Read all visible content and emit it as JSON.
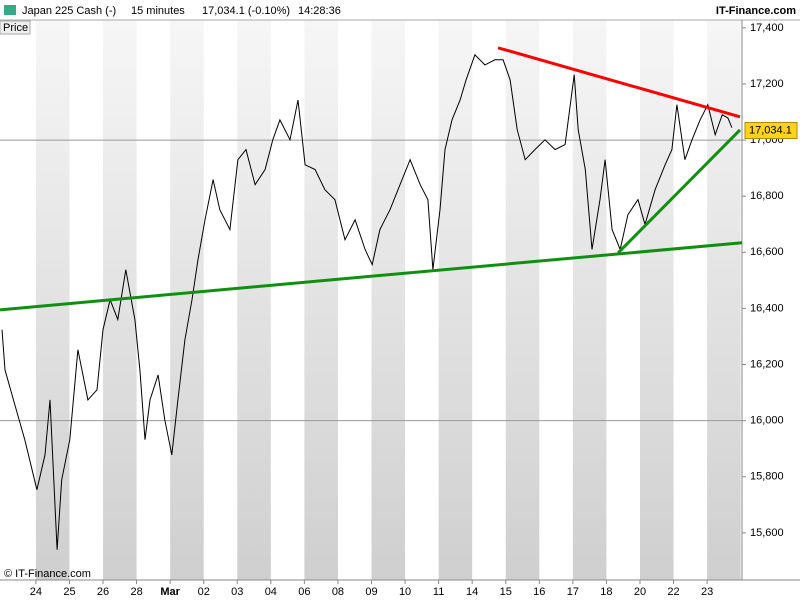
{
  "header": {
    "instrument": "Japan 225 Cash (-)",
    "interval": "15 minutes",
    "quote": "17,034.1 (-0.10%)",
    "time": "14:28:36",
    "brand": "IT-Finance.com",
    "panel_label": "Price",
    "copyright": "© IT-Finance.com"
  },
  "chart_data": {
    "type": "line",
    "xlim": [
      -1.07,
      21.04
    ],
    "ylim": [
      15432,
      17428
    ],
    "xticks": [
      {
        "value": 0,
        "label": "24"
      },
      {
        "value": 1,
        "label": "25"
      },
      {
        "value": 2,
        "label": "26"
      },
      {
        "value": 3,
        "label": "28"
      },
      {
        "value": 4,
        "label": "Mar"
      },
      {
        "value": 5,
        "label": "02"
      },
      {
        "value": 6,
        "label": "03"
      },
      {
        "value": 7,
        "label": "04"
      },
      {
        "value": 8,
        "label": "06"
      },
      {
        "value": 9,
        "label": "08"
      },
      {
        "value": 10,
        "label": "09"
      },
      {
        "value": 11,
        "label": "10"
      },
      {
        "value": 12,
        "label": "11"
      },
      {
        "value": 13,
        "label": "14"
      },
      {
        "value": 14,
        "label": "15"
      },
      {
        "value": 15,
        "label": "16"
      },
      {
        "value": 16,
        "label": "17"
      },
      {
        "value": 17,
        "label": "18"
      },
      {
        "value": 18,
        "label": "20"
      },
      {
        "value": 19,
        "label": "22"
      },
      {
        "value": 20,
        "label": "23"
      }
    ],
    "yticks": [
      {
        "value": 15600,
        "label": "15,600"
      },
      {
        "value": 15800,
        "label": "15,800"
      },
      {
        "value": 16000,
        "label": "16,000"
      },
      {
        "value": 16200,
        "label": "16,200"
      },
      {
        "value": 16400,
        "label": "16,400"
      },
      {
        "value": 16600,
        "label": "16,600"
      },
      {
        "value": 16800,
        "label": "16,800"
      },
      {
        "value": 17000,
        "label": "17,000"
      },
      {
        "value": 17200,
        "label": "17,200"
      },
      {
        "value": 17400,
        "label": "17,400"
      }
    ],
    "ygrid": [
      16000,
      17000
    ],
    "series": [
      {
        "name": "Price",
        "color": "#000000",
        "x": [
          -1.01,
          -0.92,
          -0.63,
          -0.33,
          0.03,
          0.27,
          0.42,
          0.63,
          0.77,
          1.01,
          1.25,
          1.55,
          1.82,
          2.0,
          2.21,
          2.44,
          2.68,
          2.95,
          3.1,
          3.25,
          3.4,
          3.64,
          3.84,
          4.05,
          4.23,
          4.44,
          4.65,
          4.83,
          5.04,
          5.28,
          5.48,
          5.78,
          6.02,
          6.26,
          6.53,
          6.83,
          7.06,
          7.27,
          7.57,
          7.81,
          8.02,
          8.32,
          8.61,
          8.91,
          9.21,
          9.51,
          9.81,
          10.02,
          10.25,
          10.55,
          10.79,
          11.15,
          11.45,
          11.68,
          11.83,
          12.04,
          12.19,
          12.4,
          12.64,
          12.82,
          13.08,
          13.38,
          13.68,
          13.92,
          14.13,
          14.34,
          14.58,
          14.87,
          15.17,
          15.47,
          15.77,
          16.04,
          16.16,
          16.37,
          16.57,
          16.81,
          16.96,
          17.17,
          17.41,
          17.64,
          17.94,
          18.15,
          18.45,
          18.75,
          18.95,
          19.1,
          19.34,
          19.55,
          19.79,
          20.02,
          20.24,
          20.45,
          20.62,
          20.74
        ],
        "values": [
          16324,
          16181,
          16057,
          15932,
          15754,
          15878,
          16074,
          15540,
          15789,
          15932,
          16253,
          16074,
          16110,
          16324,
          16431,
          16360,
          16538,
          16360,
          16181,
          15932,
          16074,
          16163,
          16003,
          15878,
          16074,
          16288,
          16431,
          16574,
          16716,
          16859,
          16752,
          16681,
          16930,
          16966,
          16841,
          16895,
          17001,
          17072,
          17001,
          17143,
          16912,
          16895,
          16823,
          16788,
          16645,
          16716,
          16610,
          16556,
          16681,
          16752,
          16823,
          16930,
          16841,
          16788,
          16538,
          16752,
          16966,
          17072,
          17143,
          17215,
          17304,
          17268,
          17286,
          17286,
          17215,
          17037,
          16930,
          16966,
          17001,
          16966,
          16984,
          17233,
          17037,
          16895,
          16610,
          16788,
          16930,
          16681,
          16610,
          16734,
          16788,
          16699,
          16823,
          16912,
          16966,
          17126,
          16930,
          17001,
          17072,
          17126,
          17019,
          17090,
          17079,
          17044
        ]
      }
    ],
    "trendlines": [
      {
        "color": "#ff0000",
        "x": [
          13.77,
          20.98
        ],
        "values": [
          17329,
          17083
        ]
      },
      {
        "color": "#109010",
        "x": [
          -1.07,
          21.04
        ],
        "values": [
          16395,
          16634
        ]
      },
      {
        "color": "#109010",
        "x": [
          17.35,
          20.98
        ],
        "values": [
          16598,
          17036
        ]
      }
    ],
    "last_price": {
      "value": 17034.1,
      "label": "17,034.1",
      "color": "#ffd21f"
    }
  }
}
